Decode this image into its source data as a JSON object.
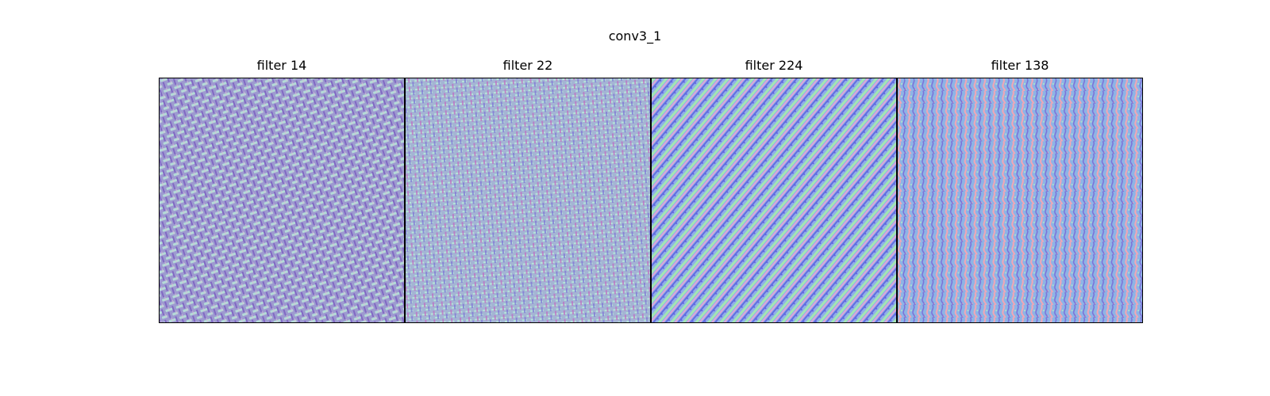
{
  "figure": {
    "title": "conv3_1"
  },
  "panels": [
    {
      "title": "filter 14",
      "pattern": "woven-crosshatch",
      "colors": [
        "#9d9ad0",
        "#b9e6d8",
        "#7a5bbf",
        "#e0b8d6"
      ]
    },
    {
      "title": "filter 22",
      "pattern": "fine-grid",
      "colors": [
        "#a4b4d4",
        "#b7ecd9",
        "#c06cc2",
        "#7e73d6"
      ]
    },
    {
      "title": "filter 224",
      "pattern": "diagonal-stripes",
      "colors": [
        "#8fb0e8",
        "#a7f0a8",
        "#f0a2d2",
        "#5a5ae0"
      ]
    },
    {
      "title": "filter 138",
      "pattern": "vertical-waves",
      "colors": [
        "#8db4e6",
        "#f3a6b4",
        "#7c6fd8",
        "#b4e8c4"
      ]
    }
  ]
}
